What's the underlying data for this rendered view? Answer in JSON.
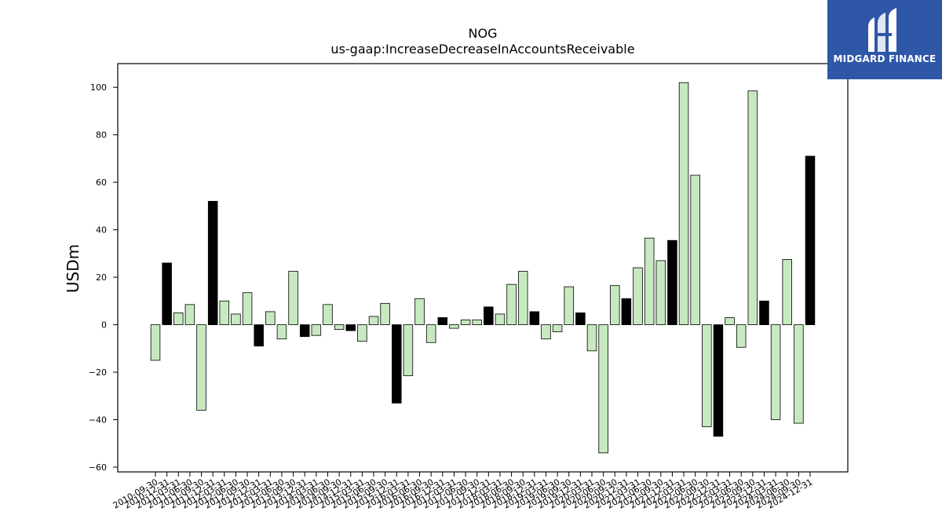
{
  "colors": {
    "positive_fill": "#c7e9c0",
    "negative_fill": "#000000",
    "bar_edge": "#000000",
    "logo_bg": "#2f57a8"
  },
  "logo": {
    "text": "MIDGARD FINANCE",
    "icon": "midgard-logo-icon"
  },
  "chart_data": {
    "type": "bar",
    "title": "NOG",
    "subtitle": "us-gaap:IncreaseDecreaseInAccountsReceivable",
    "xlabel": "",
    "ylabel": "USDm",
    "ylim": [
      -62,
      110
    ],
    "yticks": [
      -60,
      -40,
      -20,
      0,
      20,
      40,
      60,
      80,
      100
    ],
    "grid": false,
    "categories": [
      "2010-09-30",
      "2010-12-31",
      "2011-03-31",
      "2011-06-30",
      "2011-09-30",
      "2011-12-31",
      "2012-03-31",
      "2012-06-30",
      "2012-09-30",
      "2012-12-31",
      "2013-03-31",
      "2013-06-30",
      "2013-09-30",
      "2013-12-31",
      "2014-03-31",
      "2014-06-30",
      "2014-09-30",
      "2014-12-31",
      "2015-03-31",
      "2015-06-30",
      "2015-09-30",
      "2015-12-31",
      "2016-03-31",
      "2016-06-30",
      "2016-09-30",
      "2016-12-31",
      "2017-03-31",
      "2017-06-30",
      "2017-09-30",
      "2017-12-31",
      "2018-03-31",
      "2018-06-30",
      "2018-09-30",
      "2018-12-31",
      "2019-03-31",
      "2019-06-30",
      "2019-09-30",
      "2019-12-31",
      "2020-03-31",
      "2020-06-30",
      "2020-09-30",
      "2020-12-31",
      "2021-03-31",
      "2021-06-30",
      "2021-09-30",
      "2021-12-31",
      "2022-03-31",
      "2022-06-30",
      "2022-09-30",
      "2022-12-31",
      "2023-03-31",
      "2023-06-30",
      "2023-09-30",
      "2023-12-31",
      "2024-03-31",
      "2024-06-30",
      "2024-09-30",
      "2024-12-31"
    ],
    "values": [
      -15,
      26,
      5,
      8.5,
      -36,
      52,
      10,
      4.5,
      13.5,
      -9,
      5.5,
      -6,
      22.5,
      -5,
      -4.5,
      8.5,
      -2,
      -2.5,
      -7,
      3.5,
      9,
      -33,
      -21.5,
      11,
      -7.5,
      3,
      -1.5,
      2,
      2,
      7.5,
      4.5,
      17,
      22.5,
      5.5,
      -6,
      -3,
      16,
      5,
      -11,
      -54,
      16.5,
      11,
      24,
      36.5,
      27,
      35.5,
      102,
      63,
      -43,
      -47,
      3,
      -9.5,
      98.5,
      10,
      -40,
      27.5,
      -41.5,
      71
    ],
    "highlight": [
      false,
      true,
      false,
      false,
      false,
      true,
      false,
      false,
      false,
      true,
      false,
      false,
      false,
      true,
      false,
      false,
      false,
      true,
      false,
      false,
      false,
      true,
      false,
      false,
      false,
      true,
      false,
      false,
      false,
      true,
      false,
      false,
      false,
      true,
      false,
      false,
      false,
      true,
      false,
      false,
      false,
      true,
      false,
      false,
      false,
      true,
      false,
      false,
      false,
      true,
      false,
      false,
      false,
      true,
      false,
      false,
      false,
      true
    ]
  }
}
